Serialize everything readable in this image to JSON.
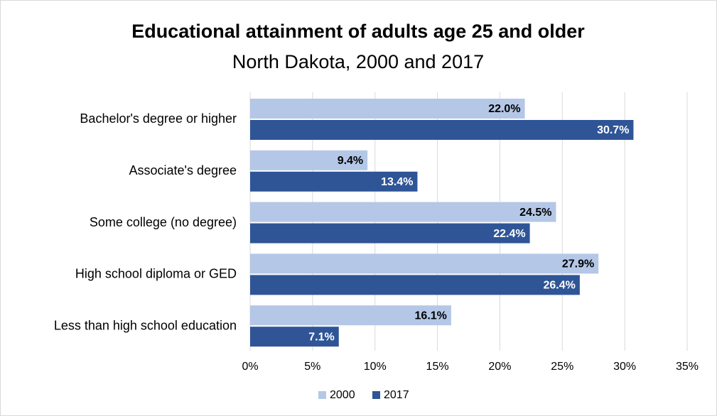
{
  "chart_data": {
    "type": "bar",
    "orientation": "horizontal",
    "title": "Educational attainment of adults age 25 and older",
    "subtitle": "North Dakota, 2000 and 2017",
    "categories": [
      "Bachelor's degree or higher",
      "Associate's degree",
      "Some college (no degree)",
      "High school diploma or GED",
      "Less than high school education"
    ],
    "series": [
      {
        "name": "2000",
        "color": "#b4c7e7",
        "values": [
          22.0,
          9.4,
          24.5,
          27.9,
          16.1
        ],
        "value_labels": [
          "22.0%",
          "9.4%",
          "24.5%",
          "27.9%",
          "16.1%"
        ]
      },
      {
        "name": "2017",
        "color": "#2f5597",
        "values": [
          30.7,
          13.4,
          22.4,
          26.4,
          7.1
        ],
        "value_labels": [
          "30.7%",
          "13.4%",
          "22.4%",
          "26.4%",
          "7.1%"
        ]
      }
    ],
    "xlim": [
      0,
      35
    ],
    "xticks": [
      {
        "value": 0,
        "label": "0%"
      },
      {
        "value": 5,
        "label": "5%"
      },
      {
        "value": 10,
        "label": "10%"
      },
      {
        "value": 15,
        "label": "15%"
      },
      {
        "value": 20,
        "label": "20%"
      },
      {
        "value": 25,
        "label": "25%"
      },
      {
        "value": 30,
        "label": "30%"
      },
      {
        "value": 35,
        "label": "35%"
      }
    ],
    "grid": true,
    "legend": "bottom"
  }
}
